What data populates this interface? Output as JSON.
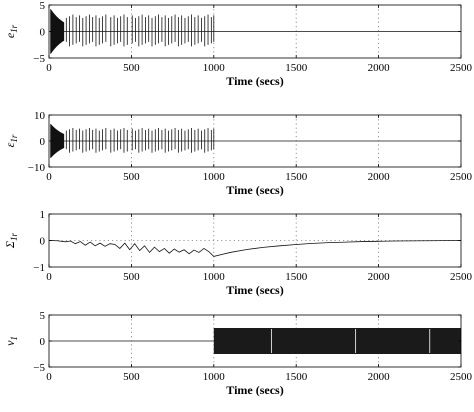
{
  "chart_data": [
    {
      "type": "line",
      "ylabel": "e1r",
      "ylabel_main": "e",
      "ylabel_sub": "1r",
      "xlabel": "Time (secs)",
      "xlim": [
        0,
        2500
      ],
      "ylim": [
        -5,
        5
      ],
      "xticks": [
        0,
        500,
        1000,
        1500,
        2000,
        2500
      ],
      "yticks": [
        -5,
        0,
        5
      ],
      "vgrid": [
        500,
        1000,
        1500,
        2000
      ],
      "series": [
        {
          "kind": "oscillation",
          "dense_burst": {
            "x": [
              10,
              90
            ],
            "amp": 4.2
          },
          "spikes_x": [
            105,
            125,
            145,
            165,
            185,
            205,
            225,
            245,
            265,
            285,
            305,
            325,
            345,
            375,
            395,
            415,
            435,
            455,
            475,
            505,
            525,
            545,
            565,
            585,
            605,
            625,
            645,
            665,
            685,
            705,
            725,
            745,
            765,
            785,
            805,
            825,
            845,
            865,
            885,
            905,
            925,
            945,
            965,
            985,
            1000
          ],
          "spike_up": 3.2,
          "spike_down": -2.8,
          "flat_after": 1000,
          "flat_value": 0
        }
      ]
    },
    {
      "type": "line",
      "ylabel": "ε1r",
      "ylabel_main": "ε",
      "ylabel_sub": "1r",
      "xlabel": "Time (secs)",
      "xlim": [
        0,
        2500
      ],
      "ylim": [
        -10,
        10
      ],
      "xticks": [
        0,
        500,
        1000,
        1500,
        2000,
        2500
      ],
      "yticks": [
        -10,
        0,
        10
      ],
      "vgrid": [
        500,
        1000,
        1500,
        2000
      ],
      "series": [
        {
          "kind": "oscillation",
          "dense_burst": {
            "x": [
              10,
              90
            ],
            "amp": 6.5
          },
          "spikes_x": [
            105,
            125,
            145,
            165,
            185,
            205,
            225,
            245,
            265,
            285,
            305,
            325,
            345,
            375,
            395,
            415,
            435,
            455,
            475,
            505,
            525,
            545,
            565,
            585,
            605,
            625,
            645,
            665,
            685,
            705,
            725,
            745,
            765,
            785,
            805,
            825,
            845,
            865,
            885,
            905,
            925,
            945,
            965,
            985,
            1000
          ],
          "spike_up": 5.0,
          "spike_down": -4.5,
          "flat_after": 1000,
          "flat_value": 0
        }
      ]
    },
    {
      "type": "line",
      "ylabel": "Σ1r",
      "ylabel_main": "Σ",
      "ylabel_sub": "1r",
      "xlabel": "Time (secs)",
      "xlim": [
        0,
        2500
      ],
      "ylim": [
        -1,
        1
      ],
      "xticks": [
        0,
        500,
        1000,
        1500,
        2000,
        2500
      ],
      "yticks": [
        -1,
        0,
        1
      ],
      "vgrid": [
        500,
        1000,
        1500,
        2000
      ],
      "hgrid": [
        0
      ],
      "series": [
        {
          "kind": "curve",
          "x": [
            0,
            50,
            100,
            130,
            160,
            190,
            220,
            250,
            280,
            310,
            340,
            370,
            400,
            430,
            460,
            490,
            520,
            550,
            580,
            610,
            640,
            670,
            700,
            730,
            760,
            790,
            820,
            850,
            880,
            910,
            940,
            970,
            1000,
            1100,
            1200,
            1300,
            1400,
            1500,
            1600,
            1700,
            1800,
            1900,
            2000,
            2100,
            2200,
            2300,
            2400,
            2500
          ],
          "y": [
            0,
            -0.01,
            -0.05,
            -0.02,
            -0.12,
            -0.04,
            -0.18,
            -0.06,
            -0.2,
            -0.1,
            -0.22,
            -0.12,
            -0.15,
            -0.3,
            -0.1,
            -0.35,
            -0.12,
            -0.38,
            -0.2,
            -0.45,
            -0.25,
            -0.42,
            -0.3,
            -0.48,
            -0.32,
            -0.44,
            -0.35,
            -0.5,
            -0.36,
            -0.45,
            -0.3,
            -0.42,
            -0.6,
            -0.45,
            -0.34,
            -0.26,
            -0.2,
            -0.15,
            -0.11,
            -0.08,
            -0.06,
            -0.04,
            -0.03,
            -0.02,
            -0.015,
            -0.01,
            -0.005,
            0
          ]
        }
      ]
    },
    {
      "type": "line",
      "ylabel": "v1",
      "ylabel_main": "v",
      "ylabel_sub": "1",
      "xlabel": "Time (secs)",
      "xlim": [
        0,
        2500
      ],
      "ylim": [
        -5,
        5
      ],
      "xticks": [
        0,
        500,
        1000,
        1500,
        2000,
        2500
      ],
      "yticks": [
        -5,
        0,
        5
      ],
      "vgrid": [
        500,
        1000,
        1500,
        2000
      ],
      "series": [
        {
          "kind": "switching",
          "zero_until": 1000,
          "band": [
            -2.5,
            2.5
          ],
          "gaps_x": [
            1350,
            1860,
            2310
          ]
        }
      ]
    }
  ]
}
